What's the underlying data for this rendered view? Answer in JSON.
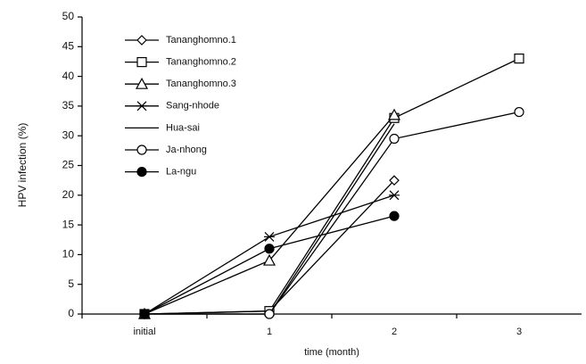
{
  "chart_data": {
    "type": "line",
    "x_label": "time (month)",
    "y_label": "HPV infection (%)",
    "categories": [
      "initial",
      "1",
      "2",
      "3"
    ],
    "ylim": [
      0,
      50
    ],
    "yticks": [
      0,
      5,
      10,
      15,
      20,
      25,
      30,
      35,
      40,
      45,
      50
    ],
    "legend": "top-left",
    "series": [
      {
        "name": "Tananghomno.1",
        "color": "#000000",
        "marker": "diamond",
        "values": [
          0,
          0.5,
          22.5,
          null
        ]
      },
      {
        "name": "Tananghomno.2",
        "color": "#000000",
        "marker": "square",
        "values": [
          0,
          0.5,
          33,
          43
        ]
      },
      {
        "name": "Tananghomno.3",
        "color": "#000000",
        "marker": "triangle",
        "values": [
          0,
          9,
          33.5,
          null
        ]
      },
      {
        "name": "Sang-nhode",
        "color": "#000000",
        "marker": "star",
        "values": [
          0,
          13,
          20,
          null
        ]
      },
      {
        "name": "Hua-sai",
        "color": "#000000",
        "marker": "none",
        "values": [
          0,
          0,
          32,
          null
        ]
      },
      {
        "name": "Ja-nhong",
        "color": "#000000",
        "marker": "circle",
        "values": [
          0,
          0,
          29.5,
          34
        ]
      },
      {
        "name": "La-ngu",
        "color": "#000000",
        "marker": "filled-circle",
        "values": [
          0,
          11,
          16.5,
          null
        ]
      }
    ]
  }
}
